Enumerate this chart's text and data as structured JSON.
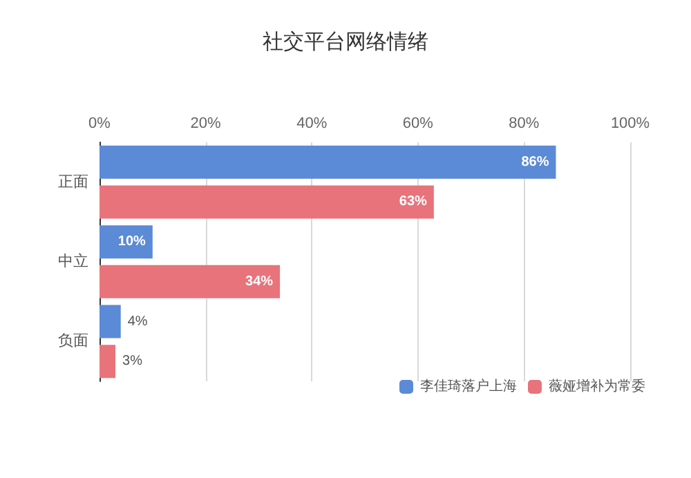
{
  "chart_data": {
    "type": "bar",
    "orientation": "horizontal",
    "title": "社交平台网络情绪",
    "categories": [
      "正面",
      "中立",
      "负面"
    ],
    "series": [
      {
        "name": "李佳琦落户上海",
        "color": "#5b8ad6",
        "values": [
          86,
          10,
          4
        ],
        "value_labels": [
          "86%",
          "10%",
          "4%"
        ]
      },
      {
        "name": "薇娅增补为常委",
        "color": "#e8737b",
        "values": [
          63,
          34,
          3
        ],
        "value_labels": [
          "63%",
          "34%",
          "3%"
        ]
      }
    ],
    "xlim": [
      0,
      100
    ],
    "xticks": [
      {
        "value": 0,
        "label": "0%"
      },
      {
        "value": 20,
        "label": "20%"
      },
      {
        "value": 40,
        "label": "40%"
      },
      {
        "value": 60,
        "label": "60%"
      },
      {
        "value": 80,
        "label": "80%"
      },
      {
        "value": 100,
        "label": "100%"
      }
    ],
    "grid": "x",
    "legend": "bottom right"
  }
}
